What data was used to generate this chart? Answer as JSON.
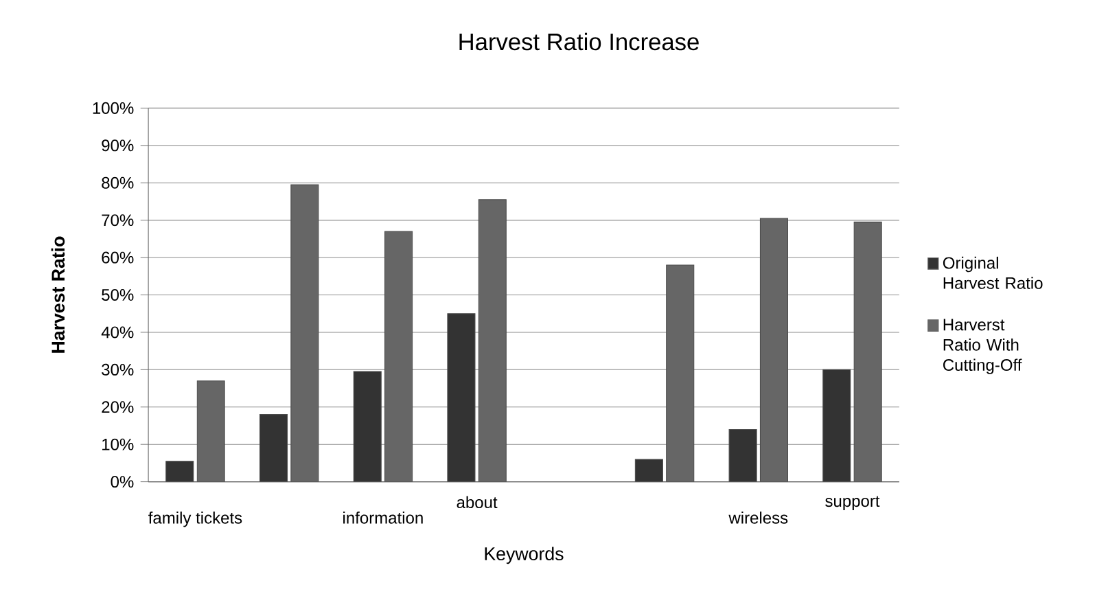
{
  "chart_data": {
    "type": "bar",
    "title": "Harvest Ratio Increase",
    "xlabel": "Keywords",
    "ylabel": "Harvest Ratio",
    "categories": [
      "family tickets",
      null,
      "information",
      "about",
      null,
      null,
      "wireless",
      "support"
    ],
    "series": [
      {
        "name": "Original Harvest Ratio",
        "color": "#333333",
        "values": [
          5.5,
          18,
          29.5,
          45,
          null,
          6,
          14,
          30
        ]
      },
      {
        "name": "Harverst Ratio With Cutting-Off",
        "color": "#666666",
        "values": [
          27,
          79.5,
          67,
          75.5,
          null,
          58,
          70.5,
          69.5
        ]
      }
    ],
    "ylim": [
      0,
      100
    ],
    "yticks": [
      {
        "value": 0,
        "label": "0%"
      },
      {
        "value": 10,
        "label": "10%"
      },
      {
        "value": 20,
        "label": "20%"
      },
      {
        "value": 30,
        "label": "30%"
      },
      {
        "value": 40,
        "label": "40%"
      },
      {
        "value": 50,
        "label": "50%"
      },
      {
        "value": 60,
        "label": "60%"
      },
      {
        "value": 70,
        "label": "70%"
      },
      {
        "value": 80,
        "label": "80%"
      },
      {
        "value": 90,
        "label": "90%"
      },
      {
        "value": 100,
        "label": "100%"
      }
    ],
    "grid": "y",
    "legend": "right"
  }
}
